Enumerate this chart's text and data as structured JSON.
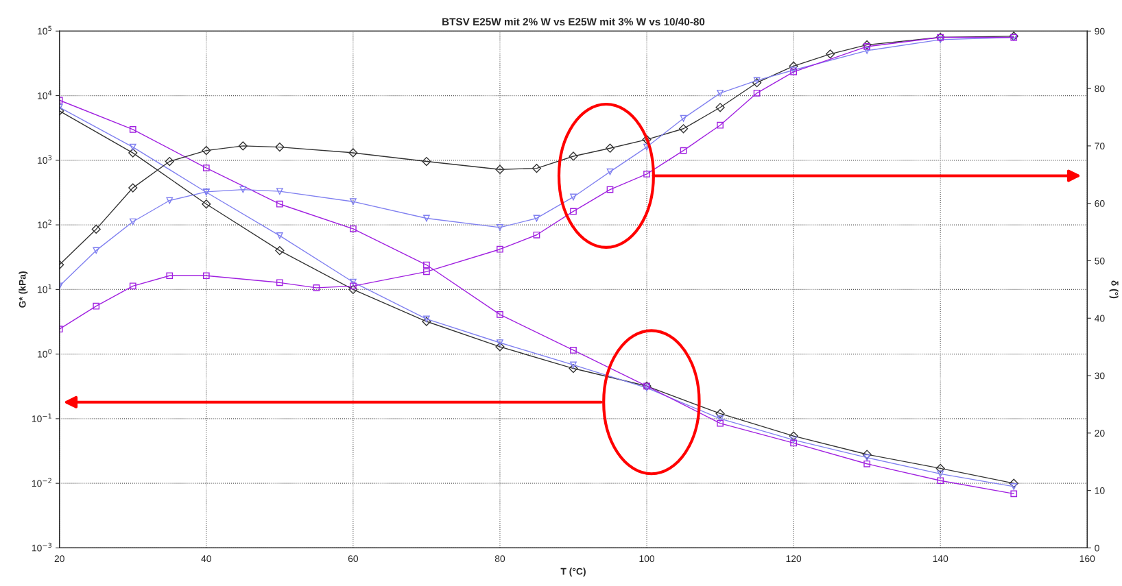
{
  "chart_data": {
    "type": "line",
    "title": "BTSV E25W mit 2% W vs E25W mit 3% W vs 10/40-80",
    "xlabel": "T (°C)",
    "ylabel": "G* (kPa)",
    "y2label": "δ (°)",
    "x": [
      20,
      30,
      40,
      50,
      60,
      70,
      80,
      90,
      100,
      110,
      120,
      130,
      140,
      150
    ],
    "series": [
      {
        "color": "#333333",
        "marker": "diamond",
        "values": [
          5800,
          1300,
          210,
          40,
          10,
          3.2,
          1.3,
          0.6,
          0.32,
          0.12,
          0.054,
          0.028,
          0.017,
          0.01
        ]
      },
      {
        "color": "#8080f0",
        "marker": "triangle",
        "values": [
          6600,
          1600,
          320,
          68,
          13,
          3.5,
          1.5,
          0.68,
          0.3,
          0.1,
          0.047,
          0.025,
          0.014,
          0.0089
        ]
      },
      {
        "color": "#a020e0",
        "marker": "square",
        "values": [
          8500,
          3000,
          760,
          210,
          87,
          24,
          4.1,
          1.15,
          0.32,
          0.085,
          0.042,
          0.02,
          0.011,
          0.0069
        ]
      },
      {
        "color": "#333333",
        "marker": "diamond",
        "axis": "y2",
        "x": [
          20,
          25,
          30,
          35,
          40,
          45,
          50,
          60,
          70,
          80,
          85,
          90,
          95,
          100,
          105,
          110,
          115,
          120,
          125,
          130,
          140,
          150
        ],
        "values": [
          49.3,
          55.5,
          62.7,
          67.3,
          69.2,
          70,
          69.8,
          68.8,
          67.3,
          65.9,
          66.1,
          68.2,
          69.6,
          71.1,
          73,
          76.7,
          81,
          83.9,
          86,
          87.6,
          88.9,
          89.1
        ]
      },
      {
        "color": "#8080f0",
        "marker": "triangle",
        "axis": "y2",
        "x": [
          20,
          25,
          30,
          35,
          40,
          45,
          50,
          60,
          70,
          80,
          85,
          90,
          95,
          100,
          105,
          110,
          115,
          120,
          130,
          140,
          150
        ],
        "values": [
          45.6,
          51.8,
          56.8,
          60.5,
          62,
          62.4,
          62.1,
          60.3,
          57.4,
          55.8,
          57.4,
          61.1,
          65.5,
          69.8,
          74.8,
          79.2,
          81.4,
          83.2,
          86.6,
          88.5,
          88.9
        ]
      },
      {
        "color": "#a020e0",
        "marker": "square",
        "axis": "y2",
        "x": [
          20,
          25,
          30,
          35,
          40,
          50,
          55,
          60,
          70,
          80,
          85,
          90,
          95,
          100,
          105,
          110,
          115,
          120,
          130,
          140,
          150
        ],
        "values": [
          38.1,
          42.1,
          45.6,
          47.4,
          47.4,
          46.2,
          45.3,
          45.6,
          48.1,
          52,
          54.5,
          58.6,
          62.4,
          65.1,
          69.2,
          73.6,
          79.2,
          82.9,
          87.3,
          88.9,
          88.9
        ]
      }
    ],
    "log": "y",
    "xlim": [
      20,
      160
    ],
    "xticks": [
      20,
      40,
      60,
      80,
      100,
      120,
      140,
      160
    ],
    "ylim": [
      0.001,
      100000
    ],
    "yticks": [
      {
        "value": 0.001,
        "label": "10$^{−3}$"
      },
      {
        "value": 0.01,
        "label": "10$^{−2}$"
      },
      {
        "value": 0.1,
        "label": "10$^{−1}$"
      },
      {
        "value": 1,
        "label": "10$^{0}$"
      },
      {
        "value": 10,
        "label": "10$^{1}$"
      },
      {
        "value": 100,
        "label": "10$^{2}$"
      },
      {
        "value": 1000,
        "label": "10$^{3}$"
      },
      {
        "value": 10000,
        "label": "10$^{4}$"
      },
      {
        "value": 100000,
        "label": "10$^{5}$"
      }
    ],
    "y2lim": [
      0,
      90
    ],
    "y2ticks": [
      0,
      10,
      20,
      30,
      40,
      50,
      60,
      70,
      80,
      90
    ],
    "grid": true
  }
}
